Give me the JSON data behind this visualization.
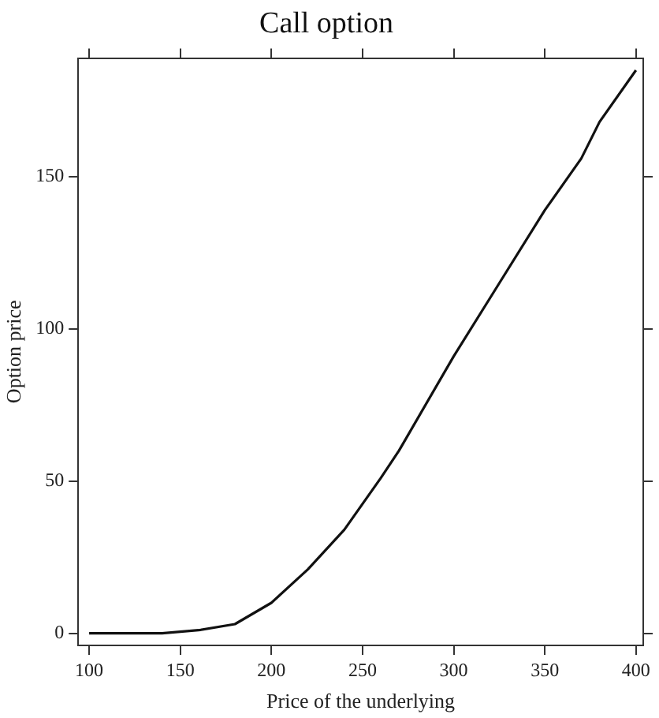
{
  "chart_data": {
    "type": "line",
    "title": "Call option",
    "xlabel": "Price of the underlying",
    "ylabel": "Option price",
    "x": [
      100,
      120,
      140,
      160,
      180,
      200,
      220,
      240,
      260,
      270,
      300,
      325,
      350,
      370,
      380,
      400
    ],
    "series": [
      {
        "color": "#111111",
        "values": [
          0,
          0,
          0,
          1,
          3,
          10,
          21,
          34,
          51,
          60,
          91,
          115,
          139,
          156,
          168,
          185
        ]
      }
    ],
    "xlim": [
      94,
      404
    ],
    "xticks": [
      100,
      150,
      200,
      250,
      300,
      350,
      400
    ],
    "ylim": [
      -4,
      189
    ],
    "yticks": [
      0,
      50,
      100,
      150
    ],
    "grid": false,
    "legend": false,
    "marker": "none",
    "line_style": "solid"
  }
}
